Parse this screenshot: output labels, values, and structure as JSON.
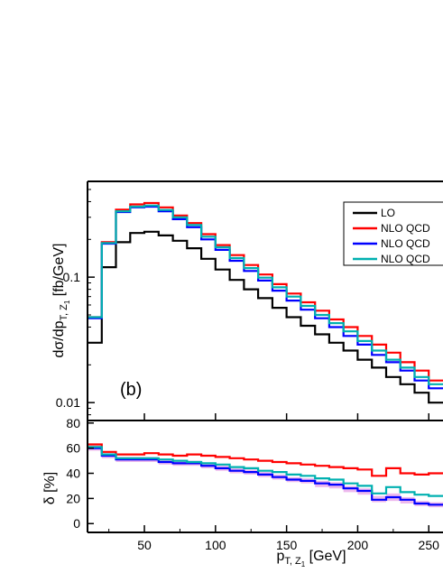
{
  "chart_data": [
    {
      "type": "line",
      "panel": "top",
      "ylabel": "dσ/dp",
      "ylabel_sub": "T, Z",
      "ylabel_subsub": "1",
      "ylabel_unit": " [fb/GeV]",
      "yscale": "log",
      "ylim": [
        0.0072,
        0.58
      ],
      "xlim": [
        10,
        260
      ],
      "yticks": [
        {
          "v": 0.01,
          "label": "0.01"
        },
        {
          "v": 0.1,
          "label": "0.1"
        }
      ],
      "annotation": "(b)",
      "bin_edges": [
        10,
        20,
        30,
        40,
        50,
        60,
        70,
        80,
        90,
        100,
        110,
        120,
        130,
        140,
        150,
        160,
        170,
        180,
        190,
        200,
        210,
        220,
        230,
        240,
        250,
        260
      ],
      "series": [
        {
          "name": "LO",
          "color": "#000000",
          "values": [
            0.03,
            0.12,
            0.19,
            0.225,
            0.23,
            0.215,
            0.195,
            0.17,
            0.14,
            0.115,
            0.095,
            0.08,
            0.068,
            0.057,
            0.048,
            0.041,
            0.035,
            0.03,
            0.026,
            0.022,
            0.019,
            0.016,
            0.014,
            0.012,
            0.01
          ]
        },
        {
          "name": "NLO QCD",
          "color": "#ff0000",
          "values": [
            0.048,
            0.19,
            0.345,
            0.38,
            0.39,
            0.36,
            0.31,
            0.27,
            0.22,
            0.18,
            0.15,
            0.125,
            0.105,
            0.088,
            0.074,
            0.063,
            0.054,
            0.046,
            0.04,
            0.034,
            0.029,
            0.025,
            0.021,
            0.018,
            0.015
          ]
        },
        {
          "name": "NLO QCD",
          "color": "#0000ff",
          "values": [
            0.047,
            0.185,
            0.33,
            0.36,
            0.365,
            0.335,
            0.29,
            0.25,
            0.2,
            0.165,
            0.135,
            0.112,
            0.094,
            0.078,
            0.065,
            0.055,
            0.047,
            0.04,
            0.034,
            0.029,
            0.024,
            0.021,
            0.018,
            0.015,
            0.013
          ]
        },
        {
          "name": "NLO QCD",
          "color": "#00b0b0",
          "values": [
            0.048,
            0.187,
            0.335,
            0.365,
            0.372,
            0.343,
            0.3,
            0.26,
            0.21,
            0.173,
            0.142,
            0.118,
            0.099,
            0.083,
            0.07,
            0.059,
            0.05,
            0.043,
            0.037,
            0.031,
            0.026,
            0.022,
            0.019,
            0.016,
            0.014
          ]
        }
      ]
    },
    {
      "type": "line",
      "panel": "bottom",
      "xlabel": "p",
      "xlabel_sub": "T, Z",
      "xlabel_subsub": "1",
      "xlabel_unit": " [GeV]",
      "ylabel": "δ [%]",
      "ylim": [
        -7,
        82
      ],
      "xlim": [
        10,
        260
      ],
      "yticks": [
        0,
        20,
        40,
        60,
        80
      ],
      "xticks": [
        50,
        100,
        150,
        200,
        250
      ],
      "bin_edges": [
        10,
        20,
        30,
        40,
        50,
        60,
        70,
        80,
        90,
        100,
        110,
        120,
        130,
        140,
        150,
        160,
        170,
        180,
        190,
        200,
        210,
        220,
        230,
        240,
        250,
        260
      ],
      "series": [
        {
          "name": "NLO QCD",
          "color": "#ff0000",
          "values": [
            63,
            57,
            55,
            55,
            56,
            55,
            54,
            55,
            54,
            53,
            52,
            51,
            50,
            49,
            48,
            47,
            46,
            45,
            44,
            43,
            38,
            44,
            40,
            39,
            40
          ]
        },
        {
          "name": "NLO QCD",
          "color": "#0000ff",
          "values": [
            60,
            54,
            51,
            51,
            51,
            49,
            48,
            48,
            46,
            44,
            42,
            41,
            39,
            37,
            35,
            34,
            32,
            31,
            28,
            26,
            19,
            21,
            19,
            16,
            15
          ]
        },
        {
          "name": "NLO QCD",
          "color": "#00b0b0",
          "values": [
            61,
            55,
            52,
            52,
            52,
            51,
            50,
            49,
            48,
            47,
            45,
            44,
            42,
            41,
            39,
            38,
            36,
            35,
            32,
            30,
            24,
            29,
            25,
            23,
            22
          ]
        }
      ],
      "band": {
        "color": "#cc33cc",
        "low": [
          58,
          52,
          49,
          49,
          49,
          47,
          46,
          46,
          44,
          42,
          40,
          39,
          37,
          35,
          33,
          32,
          29,
          28,
          25,
          23,
          17,
          18,
          16,
          14,
          13
        ],
        "high": [
          62,
          56,
          53,
          53,
          53,
          51,
          50,
          50,
          48,
          46,
          44,
          43,
          41,
          39,
          37,
          36,
          34,
          33,
          30,
          28,
          22,
          24,
          21,
          18,
          17
        ]
      }
    }
  ]
}
